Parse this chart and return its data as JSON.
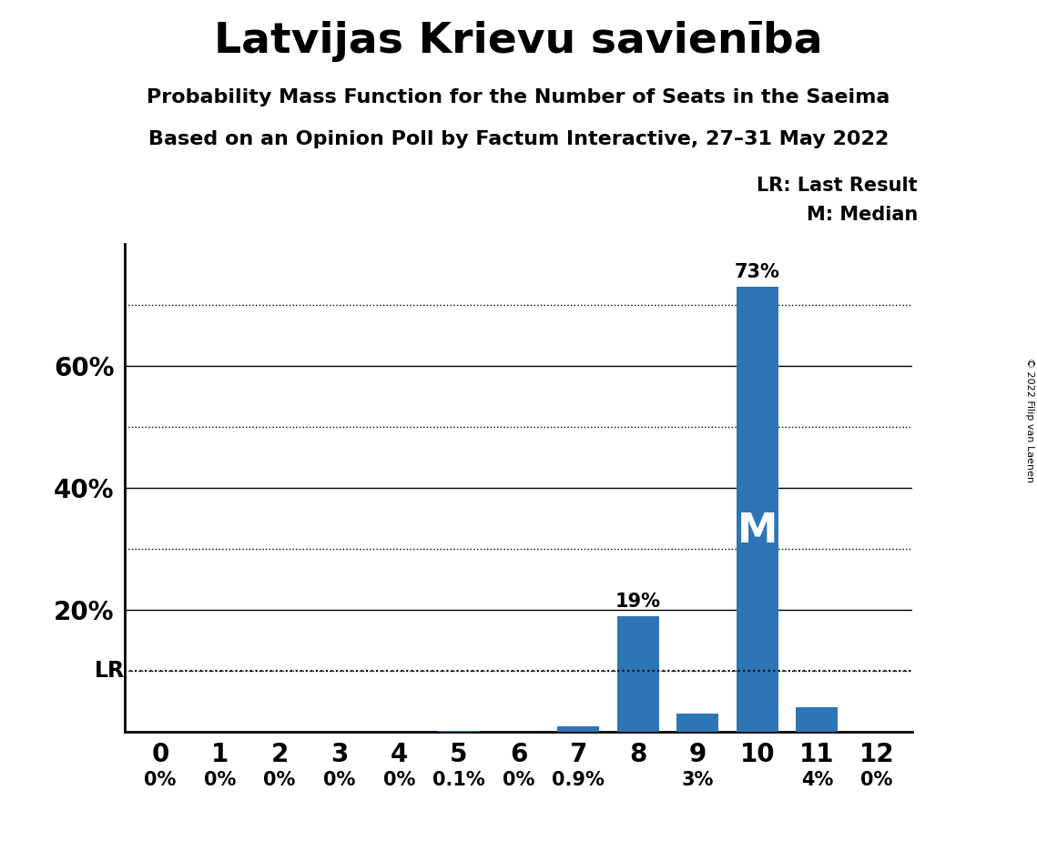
{
  "title": "Latvijas Krievu savienība",
  "subtitle1": "Probability Mass Function for the Number of Seats in the Saeima",
  "subtitle2": "Based on an Opinion Poll by Factum Interactive, 27–31 May 2022",
  "copyright": "© 2022 Filip van Laenen",
  "categories": [
    0,
    1,
    2,
    3,
    4,
    5,
    6,
    7,
    8,
    9,
    10,
    11,
    12
  ],
  "values": [
    0.0,
    0.0,
    0.0,
    0.0,
    0.0,
    0.1,
    0.0,
    0.9,
    19.0,
    3.0,
    73.0,
    4.0,
    0.0
  ],
  "bar_color": "#2E75B6",
  "bar_labels": [
    "0%",
    "0%",
    "0%",
    "0%",
    "0%",
    "0.1%",
    "0%",
    "0.9%",
    "19%",
    "3%",
    "73%",
    "4%",
    "0%"
  ],
  "lr_value": 10.0,
  "median_seat": 10,
  "ylim": [
    0,
    80
  ],
  "solid_grid": [
    20,
    40,
    60
  ],
  "dotted_grid": [
    10,
    30,
    50,
    70
  ],
  "ytick_positions": [
    20,
    40,
    60
  ],
  "ytick_labels": [
    "20%",
    "40%",
    "60%"
  ],
  "background_color": "#FFFFFF",
  "title_fontsize": 34,
  "subtitle_fontsize": 16,
  "bar_label_fontsize": 15,
  "ytick_fontsize": 20,
  "xtick_fontsize": 20,
  "legend_fontsize": 15
}
